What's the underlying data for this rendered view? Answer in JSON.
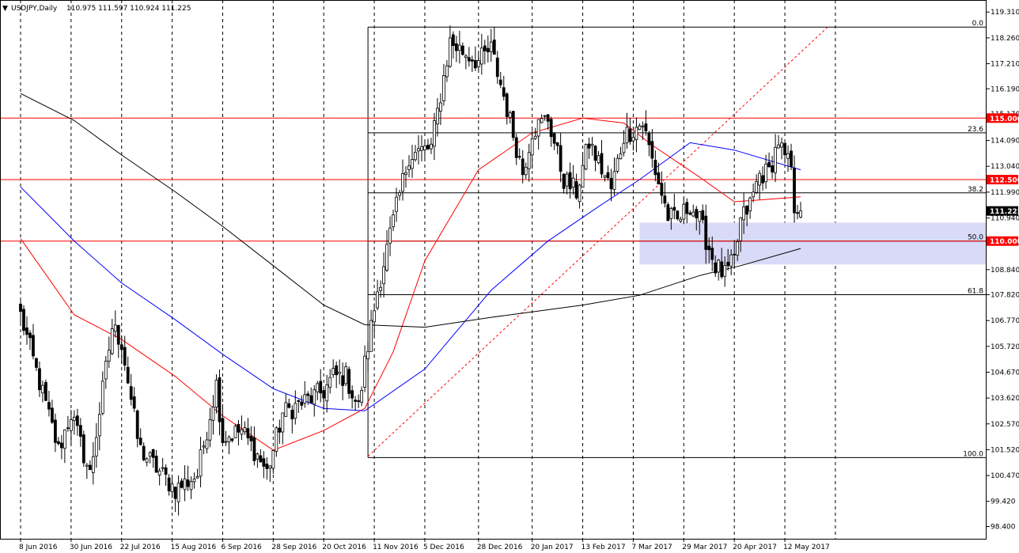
{
  "header": {
    "symbol": "USDJPY,Daily",
    "ohlc": "110.975 111.597 110.924 111.225",
    "marker": "▼"
  },
  "colors": {
    "background": "#ffffff",
    "border": "#000000",
    "candle_body": "#000000",
    "grid_line": "#000000",
    "sma_short": "#ff0000",
    "sma_mid": "#0000ff",
    "sma_long": "#000000",
    "level_line": "#ff0000",
    "level_label_bg": "#ff0000",
    "price_label_bg": "#000000",
    "zone_fill": "#d8daf7",
    "fib_line": "#000000",
    "trendline": "#ff0000"
  },
  "chart_data": {
    "type": "candlestick",
    "title": "USDJPY,Daily",
    "timeframe": "Daily",
    "grid": "vertical-dashed",
    "ylim": [
      97.9,
      119.8
    ],
    "y_ticks": [
      "119.310",
      "118.260",
      "117.210",
      "116.190",
      "115.170",
      "114.090",
      "113.040",
      "111.990",
      "110.940",
      "109.920",
      "108.840",
      "107.820",
      "106.770",
      "105.720",
      "104.670",
      "103.620",
      "102.570",
      "101.520",
      "100.470",
      "99.420",
      "98.400"
    ],
    "x_ticks": [
      "8 Jun 2016",
      "30 Jun 2016",
      "22 Jul 2016",
      "15 Aug 2016",
      "6 Sep 2016",
      "28 Sep 2016",
      "20 Oct 2016",
      "11 Nov 2016",
      "5 Dec 2016",
      "28 Dec 2016",
      "20 Jan 2017",
      "13 Feb 2017",
      "7 Mar 2017",
      "29 Mar 2017",
      "20 Apr 2017",
      "12 May 2017"
    ],
    "last_price": "111.225",
    "horizontal_levels": [
      {
        "label": "115.000",
        "value": 115.0
      },
      {
        "label": "112.500",
        "value": 112.5
      },
      {
        "label": "110.000",
        "value": 110.0
      }
    ],
    "fibonacci": {
      "levels": [
        {
          "label": "0.0",
          "value": 118.7
        },
        {
          "label": "23.6",
          "value": 114.4
        },
        {
          "label": "38.2",
          "value": 111.96
        },
        {
          "label": "50.0",
          "value": 110.0
        },
        {
          "label": "61.8",
          "value": 107.82
        },
        {
          "label": "100.0",
          "value": 101.2
        }
      ],
      "start": "2016-11-09"
    },
    "zone": {
      "from": 109.05,
      "to": 110.75,
      "start": "2017-03-09"
    },
    "trendline": {
      "from": {
        "date": "2016-11-09",
        "price": 101.25
      },
      "to": {
        "date": "2017-05-31",
        "price": 118.7
      }
    },
    "anchors": [
      [
        "2016-06-08",
        107.0
      ],
      [
        "2016-06-24",
        101.5
      ],
      [
        "2016-06-30",
        103.0
      ],
      [
        "2016-07-08",
        100.5
      ],
      [
        "2016-07-19",
        106.5
      ],
      [
        "2016-07-22",
        105.9
      ],
      [
        "2016-07-29",
        102.0
      ],
      [
        "2016-08-01",
        101.5
      ],
      [
        "2016-08-16",
        99.9
      ],
      [
        "2016-08-25",
        100.5
      ],
      [
        "2016-09-02",
        104.2
      ],
      [
        "2016-09-06",
        102.0
      ],
      [
        "2016-09-14",
        102.3
      ],
      [
        "2016-09-21",
        101.3
      ],
      [
        "2016-09-26",
        100.6
      ],
      [
        "2016-09-28",
        101.5
      ],
      [
        "2016-10-03",
        103.0
      ],
      [
        "2016-10-20",
        103.9
      ],
      [
        "2016-10-25",
        104.5
      ],
      [
        "2016-10-31",
        104.5
      ],
      [
        "2016-11-04",
        103.2
      ],
      [
        "2016-11-08",
        105.0
      ],
      [
        "2016-11-14",
        108.0
      ],
      [
        "2016-11-21",
        110.8
      ],
      [
        "2016-11-28",
        113.5
      ],
      [
        "2016-12-07",
        113.8
      ],
      [
        "2016-12-15",
        118.1
      ],
      [
        "2016-12-20",
        117.8
      ],
      [
        "2016-12-28",
        117.3
      ],
      [
        "2017-01-03",
        117.8
      ],
      [
        "2017-01-09",
        115.9
      ],
      [
        "2017-01-17",
        112.8
      ],
      [
        "2017-01-20",
        114.5
      ],
      [
        "2017-01-27",
        115.0
      ],
      [
        "2017-02-03",
        112.5
      ],
      [
        "2017-02-09",
        112.0
      ],
      [
        "2017-02-15",
        114.0
      ],
      [
        "2017-02-24",
        112.1
      ],
      [
        "2017-03-02",
        114.3
      ],
      [
        "2017-03-10",
        114.8
      ],
      [
        "2017-03-15",
        113.3
      ],
      [
        "2017-03-22",
        111.0
      ],
      [
        "2017-03-27",
        110.8
      ],
      [
        "2017-03-31",
        111.5
      ],
      [
        "2017-04-05",
        110.8
      ],
      [
        "2017-04-12",
        109.0
      ],
      [
        "2017-04-17",
        108.6
      ],
      [
        "2017-04-20",
        109.2
      ],
      [
        "2017-04-24",
        110.8
      ],
      [
        "2017-04-27",
        111.5
      ],
      [
        "2017-05-02",
        112.7
      ],
      [
        "2017-05-05",
        112.8
      ],
      [
        "2017-05-10",
        114.1
      ],
      [
        "2017-05-12",
        113.3
      ],
      [
        "2017-05-16",
        113.0
      ],
      [
        "2017-05-17",
        110.8
      ],
      [
        "2017-05-18",
        111.4
      ],
      [
        "2017-05-19",
        111.2
      ]
    ],
    "moving_averages": [
      {
        "color": "#ff0000",
        "points": [
          [
            "2016-06-08",
            110.1
          ],
          [
            "2016-07-01",
            107.0
          ],
          [
            "2016-07-22",
            106.0
          ],
          [
            "2016-08-16",
            104.5
          ],
          [
            "2016-09-06",
            102.9
          ],
          [
            "2016-09-28",
            101.5
          ],
          [
            "2016-10-20",
            102.3
          ],
          [
            "2016-11-08",
            103.2
          ],
          [
            "2016-11-21",
            105.5
          ],
          [
            "2016-12-05",
            109.2
          ],
          [
            "2016-12-28",
            112.9
          ],
          [
            "2017-01-20",
            114.4
          ],
          [
            "2017-02-13",
            115.0
          ],
          [
            "2017-03-02",
            114.8
          ],
          [
            "2017-03-15",
            113.9
          ],
          [
            "2017-04-05",
            112.6
          ],
          [
            "2017-04-20",
            111.6
          ],
          [
            "2017-05-05",
            111.7
          ],
          [
            "2017-05-19",
            111.8
          ]
        ]
      },
      {
        "color": "#0000ff",
        "points": [
          [
            "2016-06-08",
            112.2
          ],
          [
            "2016-07-01",
            110.0
          ],
          [
            "2016-07-22",
            108.3
          ],
          [
            "2016-08-16",
            106.8
          ],
          [
            "2016-09-06",
            105.4
          ],
          [
            "2016-09-28",
            104.0
          ],
          [
            "2016-10-20",
            103.2
          ],
          [
            "2016-11-08",
            103.1
          ],
          [
            "2016-12-05",
            104.8
          ],
          [
            "2017-01-03",
            108.0
          ],
          [
            "2017-01-27",
            110.0
          ],
          [
            "2017-02-20",
            111.4
          ],
          [
            "2017-03-09",
            112.5
          ],
          [
            "2017-03-31",
            114.0
          ],
          [
            "2017-04-20",
            113.7
          ],
          [
            "2017-05-19",
            112.9
          ]
        ]
      },
      {
        "color": "#000000",
        "points": [
          [
            "2016-06-08",
            116.0
          ],
          [
            "2016-07-01",
            114.9
          ],
          [
            "2016-07-22",
            113.5
          ],
          [
            "2016-08-16",
            112.0
          ],
          [
            "2016-09-06",
            110.6
          ],
          [
            "2016-09-28",
            109.0
          ],
          [
            "2016-10-20",
            107.4
          ],
          [
            "2016-11-08",
            106.6
          ],
          [
            "2016-12-05",
            106.5
          ],
          [
            "2017-01-03",
            106.9
          ],
          [
            "2017-02-13",
            107.4
          ],
          [
            "2017-03-09",
            107.8
          ],
          [
            "2017-04-05",
            108.6
          ],
          [
            "2017-04-24",
            109.0
          ],
          [
            "2017-05-19",
            109.7
          ]
        ]
      }
    ]
  }
}
